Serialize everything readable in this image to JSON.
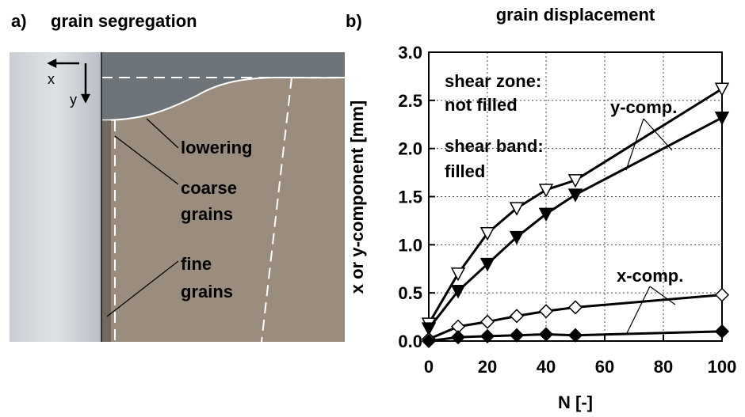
{
  "panel_a": {
    "label": "a)",
    "title": "grain segregation",
    "axis_x": "x",
    "axis_y": "y",
    "lowering": "lowering",
    "coarse": [
      "coarse",
      "grains"
    ],
    "fine": [
      "fine",
      "grains"
    ]
  },
  "chart_data": {
    "type": "line",
    "label": "b)",
    "title": "grain displacement",
    "x_label": "N [-]",
    "y_label": "x or y-component [mm]",
    "x": [
      0,
      10,
      20,
      30,
      40,
      50,
      100
    ],
    "series": [
      {
        "color": "#000000",
        "marker": "triangle-down",
        "filled": false,
        "values": [
          0.18,
          0.7,
          1.12,
          1.38,
          1.57,
          1.67,
          2.62
        ]
      },
      {
        "color": "#000000",
        "marker": "triangle-down",
        "filled": true,
        "values": [
          0.13,
          0.52,
          0.8,
          1.08,
          1.32,
          1.52,
          2.32
        ]
      },
      {
        "color": "#000000",
        "marker": "diamond",
        "filled": false,
        "values": [
          0.02,
          0.15,
          0.2,
          0.26,
          0.31,
          0.35,
          0.48
        ]
      },
      {
        "color": "#000000",
        "marker": "diamond",
        "filled": true,
        "values": [
          0.0,
          0.04,
          0.05,
          0.06,
          0.07,
          0.06,
          0.1
        ]
      }
    ],
    "xlim": [
      0,
      100
    ],
    "xticks": [
      0,
      20,
      40,
      60,
      80,
      100
    ],
    "ylim": [
      0,
      3
    ],
    "yticks": [
      {
        "value": 0,
        "label": "0.0"
      },
      0.5,
      {
        "value": 1,
        "label": "1.0"
      },
      1.5,
      {
        "value": 2,
        "label": "2.0"
      },
      2.5,
      {
        "value": 3,
        "label": "3.0"
      }
    ],
    "grid": true,
    "annotations": {
      "open": [
        "shear zone:",
        "not filled"
      ],
      "filled": [
        "shear band:",
        "filled"
      ],
      "y_comp": "y-comp.",
      "x_comp": "x-comp."
    }
  }
}
